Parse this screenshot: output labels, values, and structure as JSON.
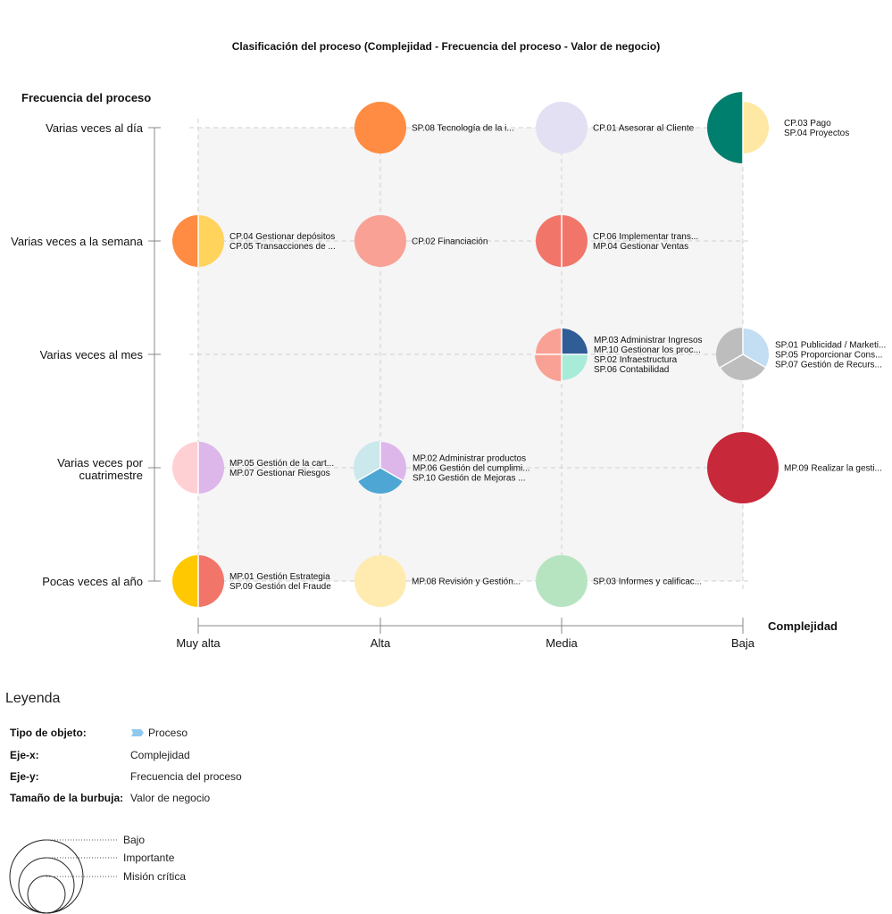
{
  "chart_data": {
    "type": "scatter",
    "subtype": "bubble-pie",
    "title": "Clasificación del proceso (Complejidad - Frecuencia del proceso - Valor de negocio)",
    "xlabel": "Complejidad",
    "ylabel": "Frecuencia del proceso",
    "x_categories": [
      "Muy alta",
      "Alta",
      "Media",
      "Baja"
    ],
    "y_categories": [
      "Pocas veces al año",
      "Varias veces por cuatrimestre",
      "Varias veces al mes",
      "Varias veces a la semana",
      "Varias veces al día"
    ],
    "bubbles": [
      {
        "x": "Alta",
        "y": "Varias veces al día",
        "size": "Misión crítica",
        "slices": [
          {
            "label": "SP.08 Tecnología de la i...",
            "size": "Misión crítica",
            "color": "#FF8C42"
          }
        ]
      },
      {
        "x": "Media",
        "y": "Varias veces al día",
        "size": "Misión crítica",
        "slices": [
          {
            "label": "CP.01 Asesorar al Cliente",
            "size": "Misión crítica",
            "color": "#E3E0F3"
          }
        ]
      },
      {
        "x": "Baja",
        "y": "Varias veces al día",
        "size": "Bajo",
        "slices": [
          {
            "label": "CP.03 Pago",
            "size": "Misión crítica",
            "color": "#FFE8A3"
          },
          {
            "label": "SP.04 Proyectos",
            "size": "Bajo",
            "color": "#007F6E"
          }
        ]
      },
      {
        "x": "Muy alta",
        "y": "Varias veces a la semana",
        "size": "Misión crítica",
        "slices": [
          {
            "label": "CP.04 Gestionar depósitos",
            "size": "Misión crítica",
            "color": "#FFD35C"
          },
          {
            "label": "CP.05 Transacciones de ...",
            "size": "Misión crítica",
            "color": "#FF8C42"
          }
        ]
      },
      {
        "x": "Alta",
        "y": "Varias veces a la semana",
        "size": "Misión crítica",
        "slices": [
          {
            "label": "CP.02 Financiación",
            "size": "Misión crítica",
            "color": "#F9A195"
          }
        ]
      },
      {
        "x": "Media",
        "y": "Varias veces a la semana",
        "size": "Misión crítica",
        "slices": [
          {
            "label": "CP.06 Implementar trans...",
            "size": "Misión crítica",
            "color": "#F2756A"
          },
          {
            "label": "MP.04 Gestionar Ventas",
            "size": "Misión crítica",
            "color": "#F2756A"
          }
        ]
      },
      {
        "x": "Media",
        "y": "Varias veces al mes",
        "size": "Importante",
        "slices": [
          {
            "label": "MP.03 Administrar Ingresos",
            "size": "Misión crítica",
            "color": "#2F5D96"
          },
          {
            "label": "MP.10 Gestionar los proc...",
            "size": "Misión crítica",
            "color": "#A8EBD9"
          },
          {
            "label": "SP.02 Infraestructura",
            "size": "Importante",
            "color": "#F9A195"
          },
          {
            "label": "SP.06 Contabilidad",
            "size": "Misión crítica",
            "color": "#F9A195"
          }
        ]
      },
      {
        "x": "Baja",
        "y": "Varias veces al mes",
        "size": "Importante",
        "slices": [
          {
            "label": "SP.01 Publicidad / Marketi...",
            "size": "Misión crítica",
            "color": "#C3DDF3"
          },
          {
            "label": "SP.05 Proporcionar Cons...",
            "size": "Misión crítica",
            "color": "#BDBDBD"
          },
          {
            "label": "SP.07 Gestión de Recurs...",
            "size": "Importante",
            "color": "#BDBDBD"
          }
        ]
      },
      {
        "x": "Muy alta",
        "y": "Varias veces por cuatrimestre",
        "size": "Misión crítica",
        "slices": [
          {
            "label": "MP.05 Gestión de la cart...",
            "size": "Misión crítica",
            "color": "#DDB6EA"
          },
          {
            "label": "MP.07 Gestionar Riesgos",
            "size": "Misión crítica",
            "color": "#FFD0D3"
          }
        ]
      },
      {
        "x": "Alta",
        "y": "Varias veces por cuatrimestre",
        "size": "Importante",
        "slices": [
          {
            "label": "MP.02 Administrar productos",
            "size": "Misión crítica",
            "color": "#DDB6EA"
          },
          {
            "label": "MP.06 Gestión del cumplimi...",
            "size": "Misión crítica",
            "color": "#4DA6D3"
          },
          {
            "label": "SP.10 Gestión de Mejoras ...",
            "size": "Importante",
            "color": "#CBE8EC"
          }
        ]
      },
      {
        "x": "Baja",
        "y": "Varias veces por cuatrimestre",
        "size": "Bajo",
        "slices": [
          {
            "label": "MP.09 Realizar la gesti...",
            "size": "Bajo",
            "color": "#C8293A"
          }
        ]
      },
      {
        "x": "Muy alta",
        "y": "Pocas veces al año",
        "size": "Misión crítica",
        "slices": [
          {
            "label": "MP.01 Gestión Estrategia",
            "size": "Misión crítica",
            "color": "#F2756A"
          },
          {
            "label": "SP.09 Gestión del Fraude",
            "size": "Misión crítica",
            "color": "#FFC800"
          }
        ]
      },
      {
        "x": "Alta",
        "y": "Pocas veces al año",
        "size": "Misión crítica",
        "slices": [
          {
            "label": "MP.08 Revisión y Gestión...",
            "size": "Misión crítica",
            "color": "#FFEAB0"
          }
        ]
      },
      {
        "x": "Media",
        "y": "Pocas veces al año",
        "size": "Misión crítica",
        "slices": [
          {
            "label": "SP.03 Informes y calificac...",
            "size": "Misión crítica",
            "color": "#B7E4C0"
          }
        ]
      }
    ],
    "grid": true,
    "legend_position": "bottom-left"
  },
  "legend": {
    "heading": "Leyenda",
    "object_type_key": "Tipo de objeto:",
    "object_type_value": "Proceso",
    "object_type_icon": "process-shape-icon",
    "object_type_color": "#8EC8EE",
    "x_key": "Eje-x:",
    "x_value": "Complejidad",
    "y_key": "Eje-y:",
    "y_value": "Frecuencia del proceso",
    "size_key": "Tamaño de la burbuja:",
    "size_value": "Valor de negocio",
    "sizes": [
      "Bajo",
      "Importante",
      "Misión crítica"
    ]
  }
}
